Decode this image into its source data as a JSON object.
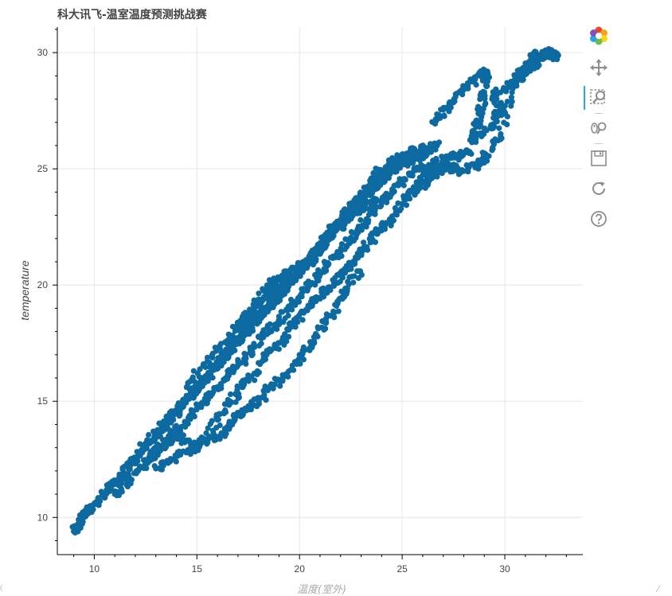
{
  "title": "科大讯飞-温室温度预测挑战赛",
  "colors": {
    "marker": "#0d6aa1",
    "grid": "#e6e6e6",
    "axis": "#000000",
    "toolbar_active": "#26aae1"
  },
  "toolbar": {
    "tools": [
      {
        "name": "bokeh-logo-icon"
      },
      {
        "name": "pan-icon"
      },
      {
        "name": "box-zoom-icon"
      },
      {
        "name": "wheel-zoom-icon"
      },
      {
        "name": "save-icon"
      },
      {
        "name": "reset-icon"
      },
      {
        "name": "help-icon"
      }
    ]
  },
  "chart_data": {
    "type": "scatter",
    "title": "科大讯飞-温室温度预测挑战赛",
    "xlabel": "温度(室外)",
    "ylabel": "temperature",
    "xlim": [
      8.2,
      33.8
    ],
    "ylim": [
      8.4,
      31.1
    ],
    "xticks": [
      10,
      15,
      20,
      25,
      30
    ],
    "yticks": [
      10,
      15,
      20,
      25,
      30
    ],
    "grid": true,
    "series": [
      {
        "points": [
          [
            9.0,
            9.4
          ],
          [
            9.2,
            9.6
          ],
          [
            9.3,
            9.9
          ],
          [
            9.5,
            10.1
          ],
          [
            9.8,
            10.3
          ],
          [
            10.1,
            10.6
          ],
          [
            10.5,
            11.0
          ],
          [
            10.9,
            11.4
          ],
          [
            11.3,
            11.8
          ],
          [
            11.7,
            12.2
          ],
          [
            12.0,
            12.5
          ],
          [
            12.3,
            12.9
          ],
          [
            12.7,
            13.3
          ],
          [
            13.1,
            13.7
          ],
          [
            13.5,
            14.1
          ],
          [
            13.9,
            14.5
          ],
          [
            14.3,
            14.9
          ],
          [
            14.7,
            15.3
          ],
          [
            15.1,
            15.7
          ],
          [
            15.5,
            16.1
          ],
          [
            15.9,
            16.5
          ],
          [
            16.3,
            16.9
          ],
          [
            16.7,
            17.3
          ],
          [
            17.1,
            17.8
          ],
          [
            17.5,
            18.2
          ],
          [
            17.9,
            18.6
          ],
          [
            18.3,
            19.0
          ],
          [
            18.7,
            19.4
          ],
          [
            19.1,
            19.8
          ],
          [
            19.5,
            20.2
          ],
          [
            19.9,
            20.5
          ],
          [
            20.3,
            20.9
          ],
          [
            20.7,
            21.4
          ],
          [
            21.1,
            21.8
          ],
          [
            21.5,
            22.3
          ],
          [
            21.9,
            22.7
          ],
          [
            22.3,
            23.1
          ],
          [
            22.7,
            23.5
          ],
          [
            23.1,
            23.9
          ],
          [
            23.5,
            24.3
          ],
          [
            23.9,
            24.7
          ],
          [
            24.3,
            25.0
          ],
          [
            24.7,
            25.2
          ],
          [
            25.1,
            25.5
          ],
          [
            25.5,
            25.6
          ],
          [
            25.9,
            25.8
          ],
          [
            26.3,
            25.9
          ],
          [
            26.7,
            26.0
          ],
          [
            11.0,
            11.0
          ],
          [
            11.6,
            11.5
          ],
          [
            12.2,
            12.1
          ],
          [
            12.8,
            12.6
          ],
          [
            13.4,
            13.2
          ],
          [
            14.0,
            13.8
          ],
          [
            14.6,
            14.3
          ],
          [
            15.2,
            14.9
          ],
          [
            15.8,
            15.4
          ],
          [
            16.4,
            16.0
          ],
          [
            17.0,
            16.6
          ],
          [
            17.6,
            17.1
          ],
          [
            18.2,
            17.8
          ],
          [
            18.8,
            18.3
          ],
          [
            19.4,
            18.9
          ],
          [
            20.0,
            19.5
          ],
          [
            20.6,
            20.1
          ],
          [
            21.2,
            20.7
          ],
          [
            21.8,
            21.3
          ],
          [
            22.4,
            21.9
          ],
          [
            23.0,
            22.5
          ],
          [
            23.6,
            23.1
          ],
          [
            24.2,
            23.7
          ],
          [
            24.8,
            24.3
          ],
          [
            25.4,
            24.8
          ],
          [
            26.0,
            25.0
          ],
          [
            26.6,
            25.3
          ],
          [
            27.2,
            25.4
          ],
          [
            27.8,
            25.6
          ],
          [
            28.3,
            25.7
          ],
          [
            12.4,
            13.0
          ],
          [
            13.0,
            13.5
          ],
          [
            13.6,
            14.2
          ],
          [
            14.2,
            14.7
          ],
          [
            14.8,
            15.3
          ],
          [
            15.4,
            15.9
          ],
          [
            16.0,
            16.5
          ],
          [
            16.6,
            17.2
          ],
          [
            17.2,
            17.7
          ],
          [
            17.8,
            18.4
          ],
          [
            18.4,
            19.0
          ],
          [
            19.0,
            19.6
          ],
          [
            19.6,
            20.2
          ],
          [
            20.2,
            20.8
          ],
          [
            20.8,
            21.3
          ],
          [
            21.4,
            22.0
          ],
          [
            22.0,
            22.6
          ],
          [
            22.6,
            23.2
          ],
          [
            23.2,
            23.8
          ],
          [
            23.8,
            24.4
          ],
          [
            24.4,
            24.9
          ],
          [
            25.0,
            25.2
          ],
          [
            25.6,
            25.4
          ],
          [
            26.2,
            25.6
          ],
          [
            13.0,
            12.1
          ],
          [
            13.6,
            12.4
          ],
          [
            14.2,
            12.7
          ],
          [
            14.8,
            13.0
          ],
          [
            15.4,
            13.3
          ],
          [
            16.0,
            14.2
          ],
          [
            16.6,
            15.0
          ],
          [
            17.2,
            15.6
          ],
          [
            17.8,
            16.2
          ],
          [
            18.4,
            17.0
          ],
          [
            19.0,
            17.5
          ],
          [
            19.6,
            18.2
          ],
          [
            20.2,
            18.8
          ],
          [
            20.8,
            19.3
          ],
          [
            21.4,
            19.9
          ],
          [
            22.0,
            20.4
          ],
          [
            22.6,
            21.0
          ],
          [
            23.2,
            21.6
          ],
          [
            23.8,
            22.2
          ],
          [
            24.4,
            22.8
          ],
          [
            25.0,
            23.5
          ],
          [
            25.6,
            24.1
          ],
          [
            26.2,
            24.7
          ],
          [
            26.8,
            25.1
          ],
          [
            14.5,
            15.6
          ],
          [
            15.5,
            16.7
          ],
          [
            16.5,
            17.6
          ],
          [
            17.5,
            18.7
          ],
          [
            18.5,
            19.6
          ],
          [
            19.5,
            20.6
          ],
          [
            20.5,
            21.0
          ],
          [
            21.5,
            22.2
          ],
          [
            22.5,
            23.3
          ],
          [
            23.5,
            24.6
          ],
          [
            24.5,
            25.3
          ],
          [
            25.5,
            25.9
          ],
          [
            12.5,
            12.3
          ],
          [
            13.0,
            12.9
          ],
          [
            13.5,
            13.1
          ],
          [
            14.0,
            13.6
          ],
          [
            14.8,
            13.1
          ],
          [
            15.6,
            13.4
          ],
          [
            16.3,
            13.6
          ],
          [
            16.8,
            14.2
          ],
          [
            17.4,
            14.6
          ],
          [
            18.0,
            15.0
          ],
          [
            18.6,
            15.6
          ],
          [
            19.3,
            16.1
          ],
          [
            20.1,
            16.9
          ],
          [
            20.7,
            17.6
          ],
          [
            21.3,
            18.4
          ],
          [
            21.8,
            19.1
          ],
          [
            22.3,
            19.8
          ],
          [
            22.9,
            20.6
          ],
          [
            26.5,
            27.0
          ],
          [
            27.1,
            27.6
          ],
          [
            27.6,
            28.1
          ],
          [
            28.2,
            28.6
          ],
          [
            28.8,
            29.0
          ],
          [
            29.1,
            29.2
          ],
          [
            29.0,
            28.3
          ],
          [
            28.8,
            27.5
          ],
          [
            28.6,
            26.8
          ],
          [
            28.4,
            26.2
          ],
          [
            29.3,
            26.8
          ],
          [
            29.6,
            27.3
          ],
          [
            29.9,
            27.6
          ],
          [
            29.4,
            28.1
          ],
          [
            30.3,
            28.6
          ],
          [
            30.7,
            28.9
          ],
          [
            31.0,
            29.2
          ],
          [
            31.3,
            29.4
          ],
          [
            31.6,
            29.6
          ],
          [
            31.8,
            29.8
          ],
          [
            32.0,
            29.9
          ],
          [
            32.2,
            30.0
          ],
          [
            32.4,
            29.9
          ],
          [
            32.5,
            29.8
          ],
          [
            31.5,
            30.0
          ],
          [
            30.9,
            29.3
          ],
          [
            30.5,
            28.9
          ],
          [
            29.8,
            26.5
          ],
          [
            29.1,
            25.6
          ],
          [
            28.7,
            25.2
          ],
          [
            27.9,
            24.9
          ],
          [
            27.4,
            25.1
          ],
          [
            26.9,
            24.9
          ],
          [
            26.4,
            24.6
          ],
          [
            25.9,
            24.2
          ],
          [
            25.3,
            24.0
          ],
          [
            16.8,
            18.2
          ],
          [
            17.3,
            18.5
          ],
          [
            17.9,
            19.2
          ],
          [
            18.5,
            19.9
          ],
          [
            19.2,
            20.4
          ],
          [
            20.1,
            20.9
          ],
          [
            20.9,
            21.5
          ],
          [
            21.7,
            22.3
          ],
          [
            22.4,
            22.9
          ],
          [
            23.0,
            23.3
          ],
          [
            23.7,
            23.6
          ],
          [
            24.5,
            24.0
          ]
        ]
      }
    ]
  }
}
